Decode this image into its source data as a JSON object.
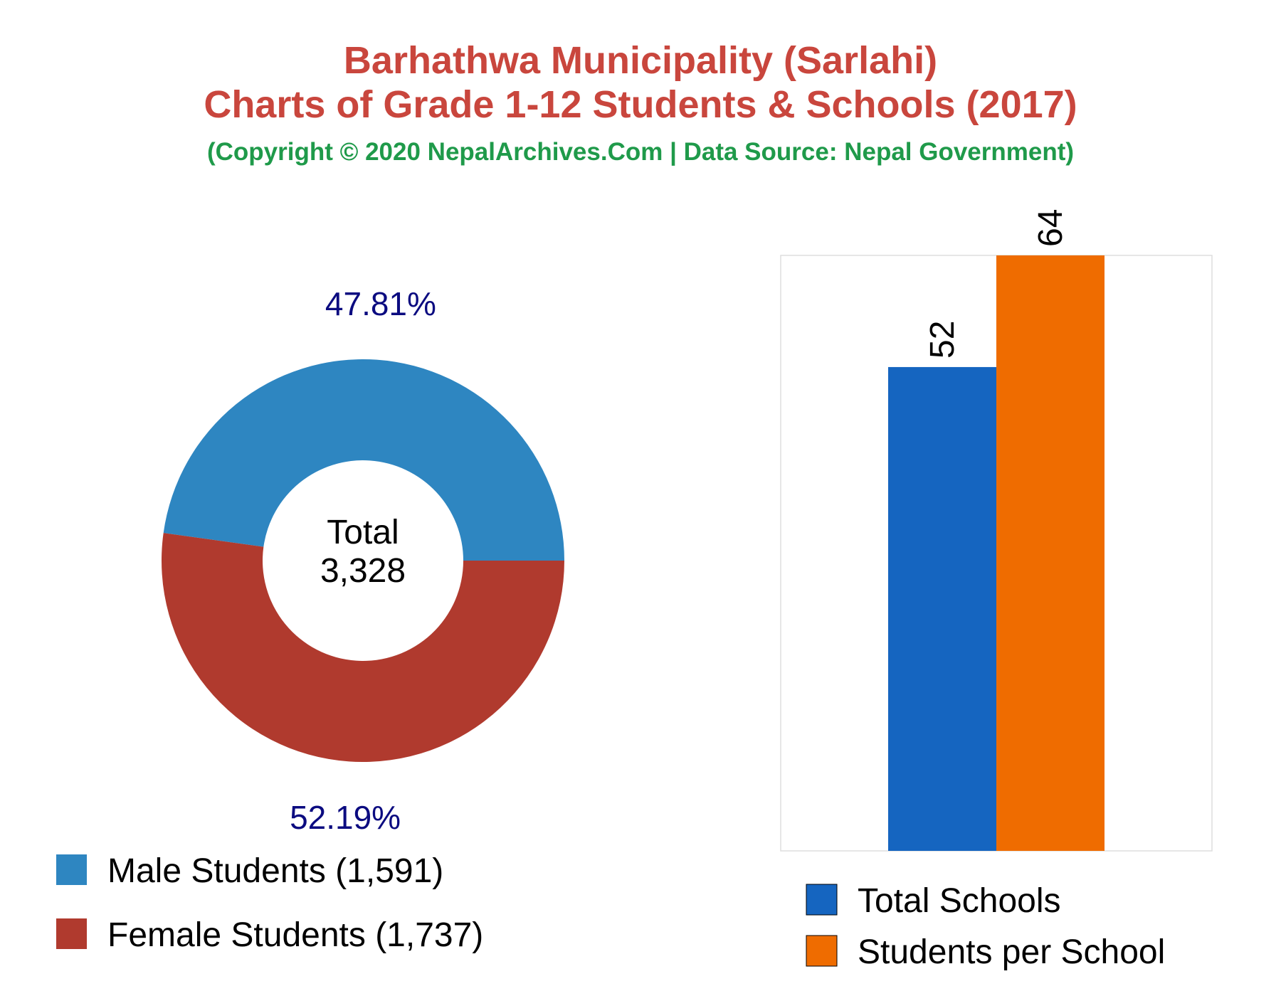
{
  "header": {
    "title_line1": "Barhathwa Municipality (Sarlahi)",
    "title_line2": "Charts of Grade 1-12 Students & Schools (2017)",
    "subtitle": "(Copyright © 2020 NepalArchives.Com | Data Source: Nepal Government)"
  },
  "colors": {
    "title": "#c9463d",
    "subtitle": "#1f9a4a",
    "percent_label": "#0b0b80",
    "male": "#2e86c1",
    "female": "#b03a2e",
    "total_schools": "#1565c0",
    "students_per_school": "#ef6c00"
  },
  "chart_data": [
    {
      "type": "pie",
      "variant": "donut",
      "center_label": "Total",
      "center_value": "3,328",
      "slices": [
        {
          "name": "Male Students",
          "value": 1591,
          "value_label": "1,591",
          "percent_label": "47.81%",
          "color": "#2e86c1"
        },
        {
          "name": "Female Students",
          "value": 1737,
          "value_label": "1,737",
          "percent_label": "52.19%",
          "color": "#b03a2e"
        }
      ],
      "legend": {
        "placement": "bottom-left",
        "entries": [
          "Male Students (1,591)",
          "Female Students (1,737)"
        ]
      }
    },
    {
      "type": "bar",
      "series": [
        {
          "name": "Total Schools",
          "value": 52,
          "label": "52",
          "color": "#1565c0"
        },
        {
          "name": "Students per School",
          "value": 64,
          "label": "64",
          "color": "#ef6c00"
        }
      ],
      "ylim": [
        0,
        64
      ],
      "grid": false,
      "legend": {
        "placement": "bottom",
        "entries": [
          "Total Schools",
          "Students per School"
        ]
      }
    }
  ]
}
